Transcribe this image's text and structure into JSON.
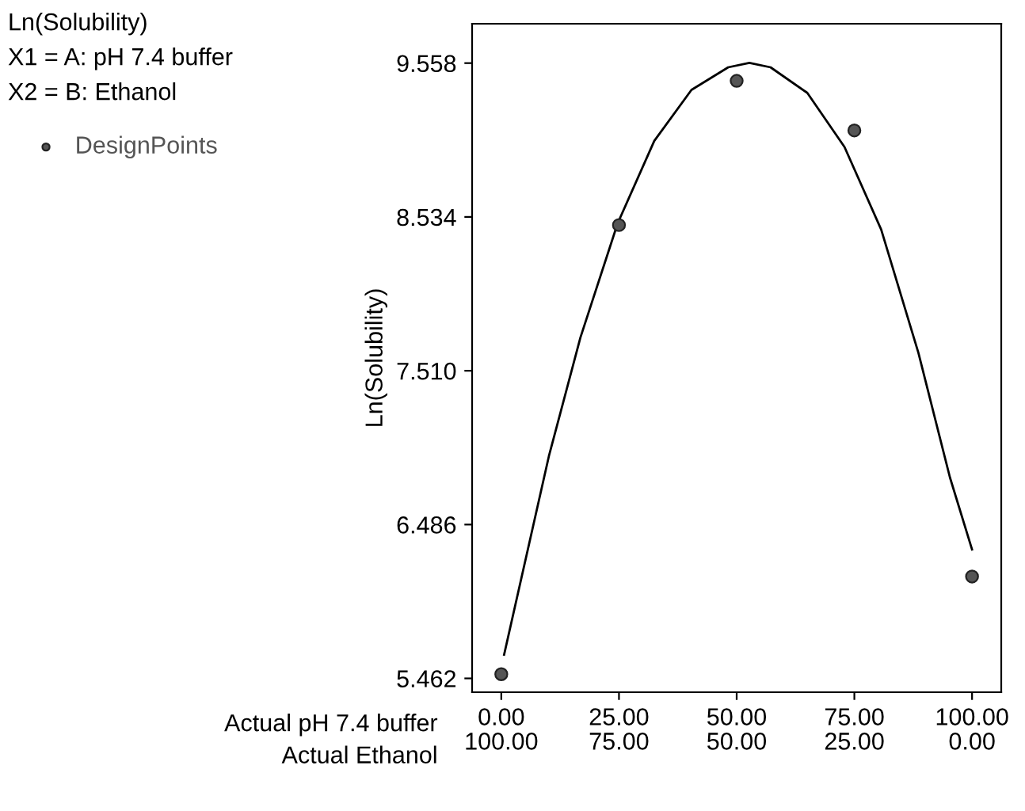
{
  "chart_data": {
    "type": "scatter",
    "ylabel": "Ln(Solubility)",
    "xlabel": "Actual pH 7.4 buffer",
    "x2label": "Actual Ethanol",
    "annotations": [
      "Ln(Solubility)",
      "X1 = A: pH 7.4 buffer",
      "X2 = B: Ethanol"
    ],
    "xlim": [
      -6.2,
      106.2
    ],
    "ylim": [
      5.37,
      9.82
    ],
    "xticks": [
      {
        "value": 0,
        "label": "0.00"
      },
      {
        "value": 25,
        "label": "25.00"
      },
      {
        "value": 50,
        "label": "50.00"
      },
      {
        "value": 75,
        "label": "75.00"
      },
      {
        "value": 100,
        "label": "100.00"
      }
    ],
    "x2lim": [
      106.2,
      -6.2
    ],
    "x2ticks": [
      {
        "value": 100,
        "label": "100.00"
      },
      {
        "value": 75,
        "label": "75.00"
      },
      {
        "value": 50,
        "label": "50.00"
      },
      {
        "value": 25,
        "label": "25.00"
      },
      {
        "value": 0,
        "label": "0.00"
      }
    ],
    "yticks": [
      5.462,
      6.486,
      {
        "value": 7.51,
        "label": "7.510"
      },
      8.534,
      9.558
    ],
    "legend": "top left",
    "grid": false,
    "series": [
      {
        "name": "DesignPoints",
        "marker": "circle",
        "color": "#555555",
        "x": [
          0,
          25,
          50,
          75,
          100
        ],
        "values": [
          5.49,
          8.48,
          9.44,
          9.11,
          6.14
        ]
      },
      {
        "type": "line",
        "color": "#000000",
        "marker": "none",
        "line_style": "solid",
        "x": [
          0.6,
          10.1,
          16.8,
          24.7,
          32.5,
          40.4,
          48.2,
          52.7,
          57.2,
          65.0,
          72.9,
          80.7,
          88.6,
          95.3,
          100
        ],
        "values": [
          5.62,
          6.94,
          7.73,
          8.49,
          9.04,
          9.38,
          9.53,
          9.56,
          9.53,
          9.36,
          9.0,
          8.45,
          7.63,
          6.8,
          6.32
        ]
      }
    ]
  }
}
